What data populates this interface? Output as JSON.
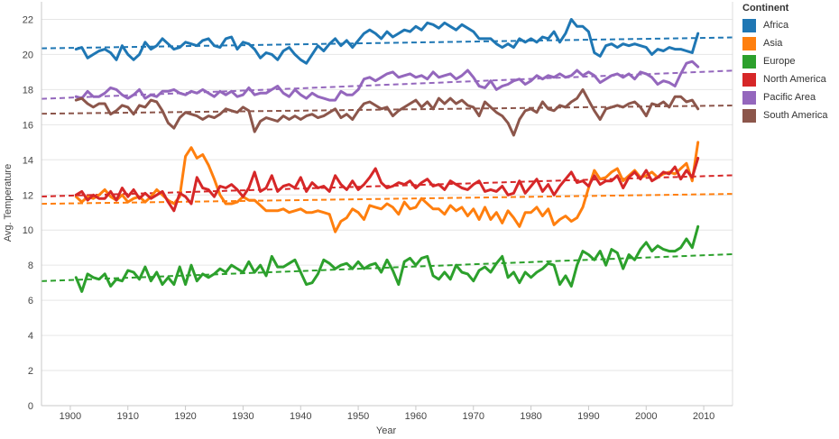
{
  "chart_data": {
    "type": "line",
    "title": "",
    "xlabel": "Year",
    "ylabel": "Avg. Temperature",
    "xlim": [
      1895,
      2015
    ],
    "ylim": [
      0,
      23
    ],
    "xticks": [
      1900,
      1910,
      1920,
      1930,
      1940,
      1950,
      1960,
      1970,
      1980,
      1990,
      2000,
      2010
    ],
    "yticks": [
      0,
      2,
      4,
      6,
      8,
      10,
      12,
      14,
      16,
      18,
      20,
      22
    ],
    "grid": "horizontal",
    "legend_position": "right",
    "legend_title": "Continent",
    "trend_lines": "dashed linear fit per series",
    "series": [
      {
        "name": "Africa",
        "color": "#1f77b4",
        "start_year": 1901,
        "values": [
          20.3,
          20.4,
          19.8,
          20.0,
          20.2,
          20.3,
          20.1,
          19.7,
          20.5,
          20.0,
          19.7,
          20.0,
          20.7,
          20.3,
          20.5,
          20.9,
          20.6,
          20.3,
          20.4,
          20.7,
          20.6,
          20.5,
          20.8,
          20.9,
          20.5,
          20.4,
          20.9,
          21.0,
          20.3,
          20.7,
          20.6,
          20.3,
          19.8,
          20.1,
          20.0,
          19.7,
          20.2,
          20.4,
          20.0,
          19.7,
          19.5,
          20.0,
          20.5,
          20.2,
          20.6,
          20.9,
          20.5,
          20.8,
          20.4,
          20.8,
          21.2,
          21.4,
          21.2,
          20.9,
          21.3,
          21.0,
          21.2,
          21.4,
          21.3,
          21.6,
          21.4,
          21.8,
          21.7,
          21.5,
          21.8,
          21.6,
          21.4,
          21.7,
          21.5,
          21.3,
          20.9,
          20.9,
          20.9,
          20.6,
          20.4,
          20.6,
          20.4,
          20.9,
          20.7,
          20.9,
          20.7,
          21.0,
          20.9,
          21.3,
          20.7,
          21.2,
          22.0,
          21.6,
          21.6,
          21.3,
          20.1,
          19.9,
          20.5,
          20.6,
          20.4,
          20.6,
          20.5,
          20.6,
          20.5,
          20.4,
          20.0,
          20.3,
          20.2,
          20.4,
          20.3,
          20.3,
          20.2,
          20.1,
          21.2
        ]
      },
      {
        "name": "Asia",
        "color": "#ff7f0e",
        "start_year": 1901,
        "values": [
          11.9,
          11.6,
          11.9,
          11.8,
          12.0,
          12.3,
          11.9,
          11.7,
          12.0,
          11.6,
          11.8,
          11.9,
          11.6,
          11.9,
          12.3,
          12.0,
          11.7,
          11.5,
          11.9,
          14.2,
          14.7,
          14.1,
          14.3,
          13.7,
          12.9,
          12.0,
          11.5,
          11.5,
          11.6,
          11.9,
          11.7,
          11.7,
          11.4,
          11.1,
          11.1,
          11.1,
          11.2,
          11.0,
          11.1,
          11.2,
          11.0,
          11.0,
          11.1,
          11.0,
          10.9,
          9.9,
          10.5,
          10.7,
          11.2,
          11.0,
          10.6,
          11.4,
          11.3,
          11.2,
          11.5,
          11.3,
          10.9,
          11.6,
          11.2,
          11.3,
          11.8,
          11.5,
          11.2,
          11.2,
          10.9,
          11.4,
          11.1,
          11.3,
          10.8,
          11.2,
          10.6,
          11.3,
          10.6,
          11.0,
          10.4,
          11.1,
          10.7,
          10.2,
          11.0,
          11.0,
          11.3,
          10.8,
          11.2,
          10.3,
          10.6,
          10.8,
          10.5,
          10.7,
          11.3,
          12.4,
          13.4,
          12.9,
          13.0,
          13.3,
          13.5,
          12.8,
          13.1,
          13.4,
          13.0,
          13.1,
          13.3,
          13.0,
          13.2,
          13.3,
          13.2,
          13.5,
          13.8,
          12.8,
          15.0
        ]
      },
      {
        "name": "Europe",
        "color": "#2ca02c",
        "start_year": 1901,
        "values": [
          7.3,
          6.5,
          7.5,
          7.3,
          7.2,
          7.5,
          6.8,
          7.2,
          7.1,
          7.7,
          7.6,
          7.2,
          7.9,
          7.1,
          7.6,
          6.9,
          7.3,
          6.9,
          7.9,
          6.9,
          8.0,
          7.1,
          7.5,
          7.3,
          7.5,
          7.8,
          7.6,
          8.0,
          7.8,
          7.6,
          8.2,
          7.6,
          8.0,
          7.4,
          8.5,
          7.9,
          7.9,
          8.1,
          8.3,
          7.6,
          6.9,
          7.0,
          7.5,
          8.3,
          8.1,
          7.8,
          8.0,
          8.1,
          7.8,
          8.2,
          7.8,
          8.0,
          8.1,
          7.6,
          8.3,
          7.7,
          6.9,
          8.2,
          8.4,
          8.0,
          8.4,
          8.5,
          7.4,
          7.2,
          7.6,
          7.2,
          8.0,
          7.6,
          7.5,
          7.1,
          7.7,
          7.9,
          7.6,
          8.1,
          8.5,
          7.3,
          7.6,
          7.0,
          7.6,
          7.3,
          7.6,
          7.8,
          8.1,
          8.0,
          6.9,
          7.4,
          6.8,
          8.0,
          8.8,
          8.6,
          8.3,
          8.8,
          8.0,
          8.9,
          8.7,
          7.8,
          8.6,
          8.3,
          8.9,
          9.3,
          8.8,
          9.1,
          8.9,
          8.8,
          8.8,
          9.0,
          9.5,
          9.0,
          10.2
        ]
      },
      {
        "name": "North America",
        "color": "#d62728",
        "start_year": 1901,
        "values": [
          12.0,
          12.2,
          11.7,
          12.0,
          11.8,
          11.8,
          12.2,
          11.7,
          12.4,
          11.9,
          12.3,
          11.8,
          12.1,
          11.8,
          12.0,
          12.2,
          11.6,
          11.1,
          12.1,
          11.9,
          11.5,
          13.0,
          12.4,
          12.3,
          11.9,
          12.5,
          12.4,
          12.6,
          12.3,
          11.9,
          12.4,
          13.3,
          12.2,
          12.4,
          13.1,
          12.2,
          12.5,
          12.6,
          12.4,
          13.0,
          12.2,
          12.7,
          12.4,
          12.5,
          12.2,
          13.1,
          12.6,
          12.3,
          12.8,
          12.3,
          12.6,
          13.0,
          13.5,
          12.7,
          12.4,
          12.5,
          12.7,
          12.6,
          12.8,
          12.4,
          12.7,
          12.9,
          12.5,
          12.6,
          12.3,
          12.8,
          12.6,
          12.4,
          12.3,
          12.6,
          12.8,
          12.2,
          12.3,
          12.2,
          12.5,
          12.0,
          12.1,
          12.8,
          12.1,
          12.5,
          12.9,
          12.2,
          12.6,
          12.0,
          12.5,
          12.9,
          13.3,
          12.7,
          12.8,
          12.5,
          13.1,
          12.6,
          12.8,
          12.8,
          13.1,
          12.4,
          13.0,
          13.3,
          12.9,
          13.4,
          12.8,
          13.0,
          13.3,
          13.2,
          13.6,
          12.9,
          13.4,
          13.0,
          14.1
        ]
      },
      {
        "name": "Pacific Area",
        "color": "#9467bd",
        "start_year": 1901,
        "values": [
          17.6,
          17.5,
          17.9,
          17.6,
          17.6,
          17.8,
          18.1,
          18.0,
          17.7,
          17.5,
          17.7,
          18.0,
          17.5,
          17.7,
          17.6,
          17.9,
          17.9,
          18.0,
          17.8,
          17.7,
          17.9,
          17.8,
          18.0,
          17.8,
          17.6,
          17.9,
          17.7,
          17.9,
          17.6,
          17.7,
          18.1,
          17.7,
          17.8,
          17.8,
          18.0,
          18.2,
          17.8,
          17.6,
          18.0,
          17.7,
          17.5,
          17.8,
          17.6,
          17.5,
          17.4,
          17.4,
          17.9,
          17.7,
          17.7,
          18.0,
          18.6,
          18.7,
          18.5,
          18.7,
          18.9,
          19.0,
          18.7,
          18.8,
          18.9,
          18.7,
          18.8,
          18.6,
          19.0,
          18.7,
          18.8,
          18.9,
          18.6,
          18.8,
          19.1,
          18.7,
          18.2,
          18.1,
          18.5,
          18.0,
          18.2,
          18.3,
          18.5,
          18.6,
          18.3,
          18.5,
          18.8,
          18.6,
          18.8,
          18.7,
          18.9,
          18.7,
          18.8,
          19.1,
          18.8,
          19.0,
          18.8,
          18.4,
          18.6,
          18.8,
          18.9,
          18.7,
          18.9,
          18.6,
          19.0,
          18.9,
          18.7,
          18.3,
          18.5,
          18.4,
          18.2,
          18.9,
          19.5,
          19.6,
          19.3
        ]
      },
      {
        "name": "South America",
        "color": "#8c564b",
        "start_year": 1901,
        "values": [
          17.4,
          17.5,
          17.2,
          17.0,
          17.2,
          17.2,
          16.6,
          16.8,
          17.1,
          17.0,
          16.6,
          17.1,
          17.0,
          17.4,
          17.3,
          16.8,
          16.1,
          15.8,
          16.4,
          16.7,
          16.6,
          16.5,
          16.3,
          16.5,
          16.4,
          16.6,
          16.9,
          16.8,
          16.7,
          17.0,
          16.8,
          15.6,
          16.2,
          16.4,
          16.3,
          16.2,
          16.5,
          16.3,
          16.5,
          16.3,
          16.5,
          16.6,
          16.4,
          16.5,
          16.7,
          16.9,
          16.4,
          16.6,
          16.3,
          16.8,
          17.2,
          17.3,
          17.1,
          16.9,
          17.0,
          16.5,
          16.8,
          17.0,
          17.2,
          17.4,
          17.0,
          17.3,
          16.9,
          17.5,
          17.2,
          17.5,
          17.2,
          17.4,
          17.1,
          17.0,
          16.5,
          17.3,
          17.0,
          16.7,
          16.5,
          16.1,
          15.4,
          16.3,
          16.8,
          16.9,
          16.7,
          17.3,
          16.9,
          16.8,
          17.1,
          17.0,
          17.3,
          17.5,
          18.0,
          17.4,
          16.8,
          16.3,
          16.9,
          17.0,
          17.1,
          17.0,
          17.2,
          17.3,
          17.0,
          16.5,
          17.2,
          17.1,
          17.3,
          17.0,
          17.6,
          17.6,
          17.3,
          17.4,
          16.9
        ]
      }
    ]
  }
}
